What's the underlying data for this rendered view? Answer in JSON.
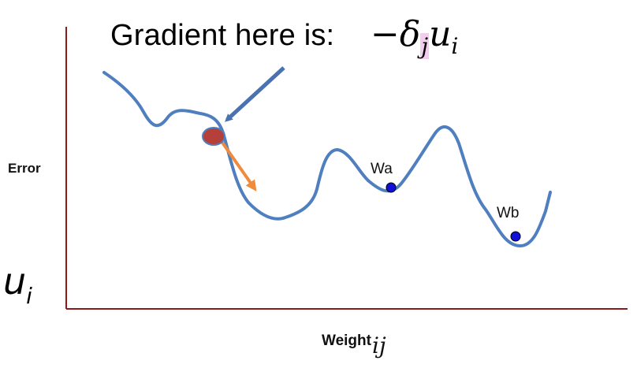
{
  "heading": "Gradient here is:",
  "formula": {
    "sign": "−",
    "delta": "δ",
    "delta_sub": "j",
    "u": "u",
    "u_sub": "i"
  },
  "y_axis_label": "Error",
  "x_axis_label": "Weight",
  "x_axis_label_sub": "ij",
  "side_symbol": {
    "main": "u",
    "sub": "i"
  },
  "points": [
    {
      "id": "wa",
      "label": "Wa"
    },
    {
      "id": "wb",
      "label": "Wb"
    }
  ],
  "colors": {
    "axis": "#8b1a1a",
    "curve": "#4f7fbf",
    "current_point": "#b5403a",
    "gradient_pointer_arrow": "#4a72b0",
    "descent_arrow": "#f08a3c",
    "minima_points": "#1010d8",
    "formula_highlight": "#f2cdee"
  }
}
